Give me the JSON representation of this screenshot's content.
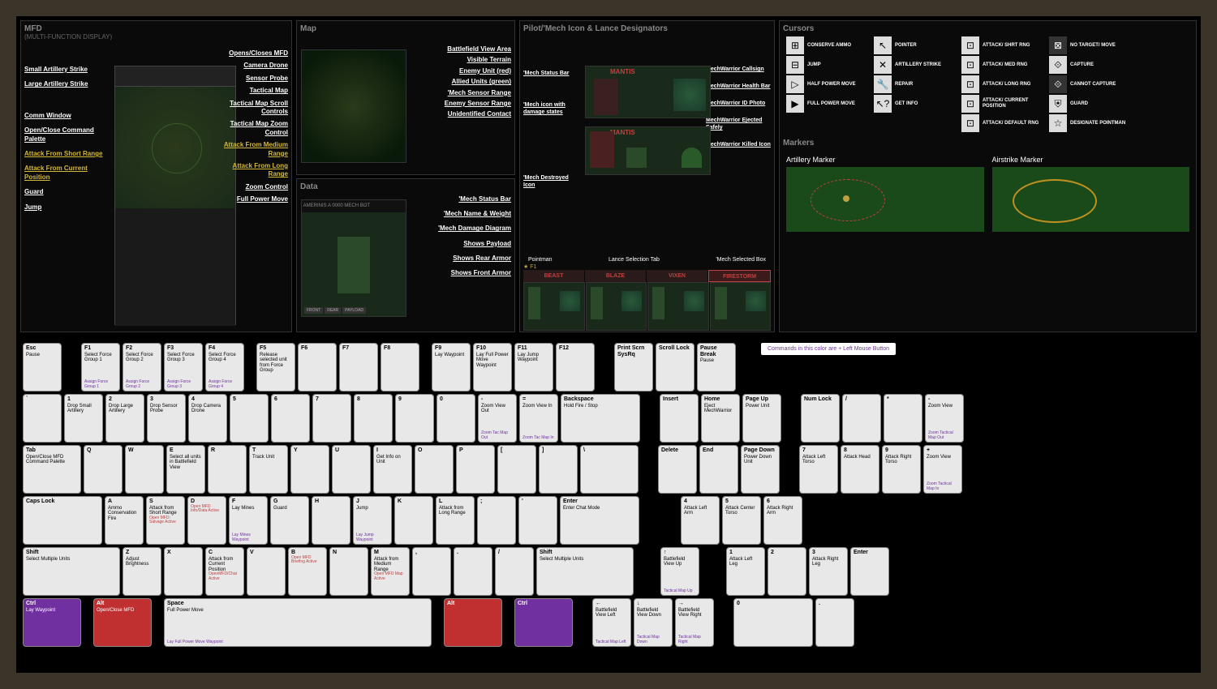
{
  "panels": {
    "mfd": {
      "title": "MFD",
      "sub": "(MULTI-FUNCTION DISPLAY)"
    },
    "map": {
      "title": "Map"
    },
    "data": {
      "title": "Data"
    },
    "mech": {
      "title": "Pilot/'Mech Icon & Lance Designators"
    },
    "cursors": {
      "title": "Cursors"
    },
    "markers": {
      "title": "Markers"
    }
  },
  "mfd_left": [
    "Small Artillery Strike",
    "Large Artillery Strike",
    "",
    "Comm Window",
    "Open/Close Command Palette",
    "Attack From Short Range",
    "Attack From Current Position",
    "Guard",
    "Jump"
  ],
  "mfd_right": [
    "Opens/Closes MFD",
    "Camera Drone",
    "Sensor Probe",
    "Tactical Map",
    "Tactical Map Scroll Controls",
    "Tactical Map Zoom Control",
    "Attack From Medium Range",
    "Attack From Long Range",
    "Zoom Control",
    "Full Power Move"
  ],
  "map_labels": [
    "Battlefield View Area",
    "Visible Terrain",
    "Enemy Unit (red)",
    "Allied Units (green)",
    "'Mech Sensor Range",
    "Enemy Sensor Range",
    "Unidentified Contact"
  ],
  "data_labels": [
    "'Mech Status Bar",
    "'Mech Name & Weight",
    "'Mech Damage Diagram",
    "Shows Payload",
    "Shows Rear Armor",
    "Shows Front Armor"
  ],
  "data_tabs": [
    "FRONT",
    "REAR",
    "PAYLOAD"
  ],
  "mech_left": [
    "'Mech Status Bar",
    "'Mech icon with damage states",
    "",
    "'Mech Destroyed Icon"
  ],
  "mech_right": [
    "MechWarrior Callsign",
    "MechWarrior Health Bar",
    "MechWarrior ID Photo",
    "MechWarrior Ejected Safely",
    "MechWarrior Killed Icon"
  ],
  "mech_name": "MANTIS",
  "lance_labels": {
    "point": "Pointman",
    "tab": "Lance Selection Tab",
    "sel": "'Mech Selected Box"
  },
  "lance_key": "F1",
  "lance_names": [
    "BEAST",
    "BLAZE",
    "VIXEN",
    "FIRESTORM"
  ],
  "cursors": [
    {
      "i": "⊞",
      "l": "CONSERVE AMMO"
    },
    {
      "i": "↖",
      "l": "POINTER"
    },
    {
      "i": "⊡",
      "l": "ATTACK/ SHRT RNG"
    },
    {
      "i": "⊠",
      "l": "NO TARGET/ MOVE",
      "d": 1
    },
    {
      "i": "⊟",
      "l": "JUMP"
    },
    {
      "i": "✕",
      "l": "ARTILLERY STRIKE"
    },
    {
      "i": "⊡",
      "l": "ATTACK/ MED RNG"
    },
    {
      "i": "⟐",
      "l": "CAPTURE"
    },
    {
      "i": "▷",
      "l": "HALF POWER MOVE"
    },
    {
      "i": "🔧",
      "l": "REPAIR"
    },
    {
      "i": "⊡",
      "l": "ATTACK/ LONG RNG"
    },
    {
      "i": "⟐",
      "l": "CANNOT CAPTURE",
      "d": 1
    },
    {
      "i": "▶",
      "l": "FULL POWER MOVE"
    },
    {
      "i": "↖?",
      "l": "GET INFO"
    },
    {
      "i": "⊡",
      "l": "ATTACK/ CURRENT POSITION"
    },
    {
      "i": "⛨",
      "l": "GUARD"
    },
    {
      "i": "",
      "l": ""
    },
    {
      "i": "",
      "l": ""
    },
    {
      "i": "⊡",
      "l": "ATTACK/ DEFAULT RNG"
    },
    {
      "i": "☆",
      "l": "DESIGNATE POINTMAN"
    }
  ],
  "markers": {
    "arty": "Artillery Marker",
    "air": "Airstrike Marker"
  },
  "legend": "Commands in this color are + Left Mouse Button",
  "kb": {
    "r0": [
      {
        "t": "Esc",
        "m": "Pause",
        "w": "",
        "gap": 1
      },
      {
        "t": "F1",
        "m": "Select Force Group 1",
        "a": "Assign Force Group 1"
      },
      {
        "t": "F2",
        "m": "Select Force Group 2",
        "a": "Assign Force Group 2"
      },
      {
        "t": "F3",
        "m": "Select Force Group 3",
        "a": "Assign Force Group 3"
      },
      {
        "t": "F4",
        "m": "Select Force Group 4",
        "a": "Assign Force Group 4",
        "gap": 0.5
      },
      {
        "t": "F5",
        "m": "Release selected unit from Force Group"
      },
      {
        "t": "F6"
      },
      {
        "t": "F7"
      },
      {
        "t": "F8",
        "gap": 0.5
      },
      {
        "t": "F9",
        "m": "Lay Waypoint"
      },
      {
        "t": "F10",
        "m": "Lay Full Power Move Waypoint"
      },
      {
        "t": "F11",
        "m": "Lay Jump Waypoint"
      },
      {
        "t": "F12",
        "gap": 1
      },
      {
        "t": "Print Scrn SysRq"
      },
      {
        "t": "Scroll Lock"
      },
      {
        "t": "Pause Break",
        "m": "Pause"
      }
    ],
    "r1": [
      {
        "t": "`"
      },
      {
        "t": "1",
        "m": "Drop Small Artillery"
      },
      {
        "t": "2",
        "m": "Drop Large Artillery"
      },
      {
        "t": "3",
        "m": "Drop Sensor Probe"
      },
      {
        "t": "4",
        "m": "Drop Camera Drone"
      },
      {
        "t": "5"
      },
      {
        "t": "6"
      },
      {
        "t": "7"
      },
      {
        "t": "8"
      },
      {
        "t": "9"
      },
      {
        "t": "0"
      },
      {
        "t": "-",
        "m": "Zoom View Out",
        "a": "Zoom Tac Map Out"
      },
      {
        "t": "=",
        "m": "Zoom View In",
        "a": "Zoom Tac Map In"
      },
      {
        "t": "Backspace",
        "m": "Hold Fire / Stop",
        "w": "w2",
        "gap": 1
      },
      {
        "t": "Insert"
      },
      {
        "t": "Home",
        "m": "Eject MechWarrior"
      },
      {
        "t": "Page Up",
        "m": "Power Unit",
        "gap": 1
      },
      {
        "t": "Num Lock"
      },
      {
        "t": "/"
      },
      {
        "t": "*"
      },
      {
        "t": "-",
        "m": "Zoom View",
        "a": "Zoom Tactical Map Out"
      }
    ],
    "r2": [
      {
        "t": "Tab",
        "m": "Open/Close MFD Command Palette",
        "w": "w15"
      },
      {
        "t": "Q"
      },
      {
        "t": "W"
      },
      {
        "t": "E",
        "m": "Select all units in Battlefield View"
      },
      {
        "t": "R"
      },
      {
        "t": "T",
        "m": "Track Unit"
      },
      {
        "t": "Y"
      },
      {
        "t": "U"
      },
      {
        "t": "I",
        "m": "Get Info on Unit"
      },
      {
        "t": "O"
      },
      {
        "t": "P"
      },
      {
        "t": "["
      },
      {
        "t": "]"
      },
      {
        "t": "\\",
        "w": "w15",
        "gap": 1
      },
      {
        "t": "Delete"
      },
      {
        "t": "End"
      },
      {
        "t": "Page Down",
        "m": "Power Down Unit",
        "gap": 1
      },
      {
        "t": "7",
        "m": "Attack Left Torso"
      },
      {
        "t": "8",
        "m": "Attack Head"
      },
      {
        "t": "9",
        "m": "Attack Right Torso"
      },
      {
        "t": "+",
        "m": "Zoom View",
        "a": "Zoom Tactical Map In"
      }
    ],
    "r3": [
      {
        "t": "Caps Lock",
        "w": "w2"
      },
      {
        "t": "A",
        "m": "Ammo Conservation Fire"
      },
      {
        "t": "S",
        "m": "Attack from Short Range",
        "r": "Open MFD: Salvage Active"
      },
      {
        "t": "D",
        "r": "Open MFD Info/Data Active"
      },
      {
        "t": "F",
        "m": "Lay Mines",
        "a": "Lay Mines Waypoint"
      },
      {
        "t": "G",
        "m": "Guard"
      },
      {
        "t": "H"
      },
      {
        "t": "J",
        "m": "Jump",
        "a": "Lay Jump Waypoint"
      },
      {
        "t": "K"
      },
      {
        "t": "L",
        "m": "Attack from Long Range"
      },
      {
        "t": ";"
      },
      {
        "t": "'"
      },
      {
        "t": "Enter",
        "m": "Enter Chat Mode",
        "w": "w2",
        "gap": 2.5
      },
      {
        "t": "4",
        "m": "Attack Left Arm"
      },
      {
        "t": "5",
        "m": "Attack Center Torso"
      },
      {
        "t": "6",
        "m": "Attack Right Arm"
      }
    ],
    "r4": [
      {
        "t": "Shift",
        "m": "Select Multiple Units",
        "w": "w25"
      },
      {
        "t": "Z",
        "m": "Adjust Brightness"
      },
      {
        "t": "X"
      },
      {
        "t": "C",
        "r": "OpenMFD/Chat Active",
        "m": "Attack from Current Position"
      },
      {
        "t": "V"
      },
      {
        "t": "B",
        "r": "Open MFD Briefing Active"
      },
      {
        "t": "N"
      },
      {
        "t": "M",
        "m": "Attack from Medium Range",
        "r": "Open MFD Map Active"
      },
      {
        "t": ","
      },
      {
        "t": "."
      },
      {
        "t": "/"
      },
      {
        "t": "Shift",
        "m": "Select Multiple Units",
        "w": "w25",
        "gap": 1.5
      },
      {
        "t": "↑",
        "m": "Battlefield View Up",
        "a": "Tactical Map Up",
        "gap": 1.5
      },
      {
        "t": "1",
        "m": "Attack Left Leg"
      },
      {
        "t": "2"
      },
      {
        "t": "3",
        "m": "Attack Right Leg"
      },
      {
        "t": "Enter"
      }
    ],
    "r5": [
      {
        "t": "Ctrl",
        "m": "Lay Waypoint",
        "w": "w15",
        "c": "purple",
        "gap": 0.5
      },
      {
        "t": "Alt",
        "m": "Open/Close MFD",
        "w": "w15",
        "c": "red",
        "gap": 0.5
      },
      {
        "t": "Space",
        "m": "Full Power Move",
        "a": "Lay Full Power Move Waypoint",
        "w": "w6",
        "gap": 0.5
      },
      {
        "t": "Alt",
        "w": "w15",
        "c": "red",
        "gap": 0.5
      },
      {
        "t": "Ctrl",
        "w": "w15",
        "c": "purple",
        "gap": 1
      },
      {
        "t": "←",
        "m": "Battlefield View Left",
        "a": "Tactical Map Left"
      },
      {
        "t": "↓",
        "m": "Battlefield View Down",
        "a": "Tactical Map Down"
      },
      {
        "t": "→",
        "m": "Battlefield View Right",
        "a": "Tactical Map Right",
        "gap": 1
      },
      {
        "t": "0",
        "w": "w2"
      },
      {
        "t": "."
      }
    ]
  }
}
